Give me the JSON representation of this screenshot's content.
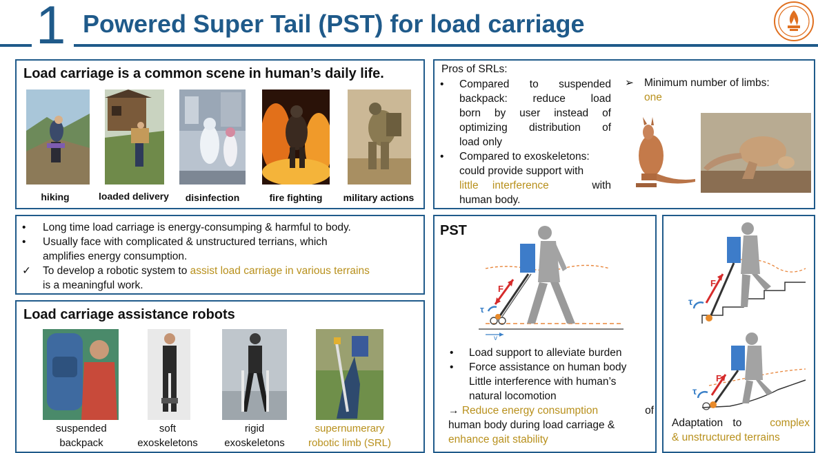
{
  "header": {
    "number": "1",
    "title": "Powered Super Tail (PST) for load carriage"
  },
  "scenes": {
    "heading": "Load carriage is a common scene in human’s daily life.",
    "items": [
      {
        "label": "hiking"
      },
      {
        "label": "loaded delivery"
      },
      {
        "label": "disinfection"
      },
      {
        "label": "fire fighting"
      },
      {
        "label": "military actions"
      }
    ]
  },
  "motivation": {
    "bullets": [
      {
        "marker": "•",
        "text": "Long time load carriage is energy-consumping & harmful to body."
      },
      {
        "marker": "•",
        "text": "Usually face with complicated & unstructured terrians, which"
      },
      {
        "marker": "",
        "text": "amplifies energy consumption."
      }
    ],
    "check_marker": "✓",
    "check_prefix": "To develop a robotic system to ",
    "check_highlight": "assist load carriage in various terrains",
    "check_suffix": "is a meaningful work."
  },
  "robots": {
    "heading": "Load carriage assistance robots",
    "items": [
      {
        "line1": "suspended",
        "line2": "backpack"
      },
      {
        "line1": "soft",
        "line2": "exoskeletons"
      },
      {
        "line1": "rigid",
        "line2": "exoskeletons"
      },
      {
        "line1": "supernumerary",
        "line2": "robotic limb (SRL)"
      }
    ]
  },
  "pros": {
    "title": "Pros of SRLs:",
    "bullet_marker": "•",
    "item1": [
      "Compared to suspended",
      "backpack: reduce load",
      "born by user instead of",
      "optimizing distribution of",
      "load only"
    ],
    "item2_line1": "Compared to exoskeletons:",
    "item2_line2": "could provide support with",
    "item2_highlight": "little interference",
    "item2_with": "with",
    "item2_line4": "human body.",
    "arrow_marker": "➢",
    "min_limbs_label": "Minimum number of limbs:",
    "min_limbs_value": "one"
  },
  "pst": {
    "heading": "PST",
    "force_label": "F",
    "torque_label": "τ",
    "velocity_label": "v",
    "bullet_marker": "•",
    "bullets": [
      "Load support to alleviate burden",
      "Force assistance on human body"
    ],
    "extra_lines": [
      "Little interference with human’s",
      "natural locomotion"
    ],
    "result_arrow": "→",
    "result_highlight1": "Reduce energy consumption",
    "result_of": "of",
    "result_line2": "human body during load carriage &",
    "result_highlight2": "enhance gait stability"
  },
  "adaptation": {
    "prefix": "Adaptation to",
    "highlight1": "complex",
    "highlight2": "& unstructured terrains"
  },
  "colors": {
    "accent": "#1f5a8a",
    "highlight": "#b8901c",
    "backpack": "#3d7cc9",
    "force": "#d62b2b"
  }
}
